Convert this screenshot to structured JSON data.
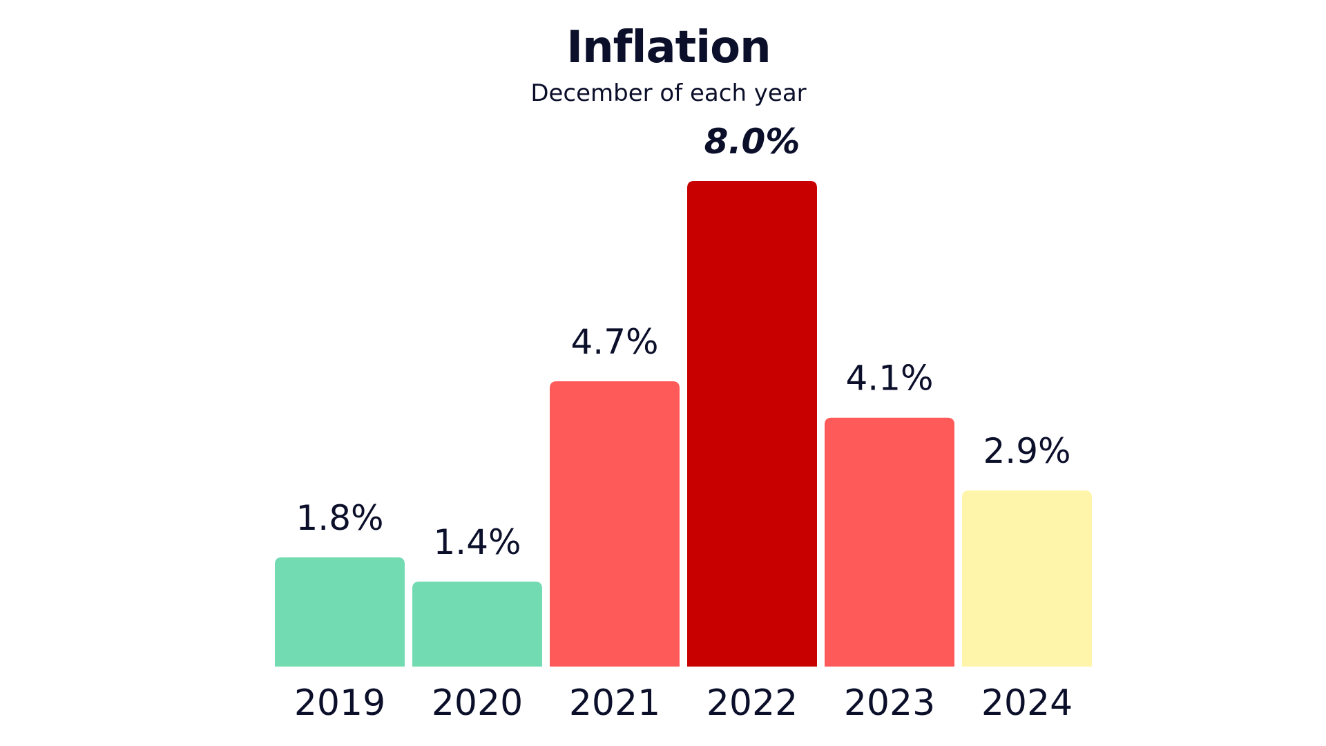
{
  "chart_data": {
    "type": "bar",
    "title": "Inflation",
    "subtitle": "December of each year",
    "xlabel": "",
    "ylabel": "",
    "categories": [
      "2019",
      "2020",
      "2021",
      "2022",
      "2023",
      "2024"
    ],
    "values": [
      1.8,
      1.4,
      4.7,
      8.0,
      4.1,
      2.9
    ],
    "value_labels": [
      "1.8%",
      "1.4%",
      "4.7%",
      "8.0%",
      "4.1%",
      "2.9%"
    ],
    "highlight_index": 3,
    "bar_colors": [
      "#72dbb2",
      "#72dbb2",
      "#ff5a5a",
      "#c80000",
      "#ff5a5a",
      "#fff5aa"
    ],
    "ylim": [
      0,
      8.0
    ],
    "grid": false,
    "legend": "none"
  }
}
